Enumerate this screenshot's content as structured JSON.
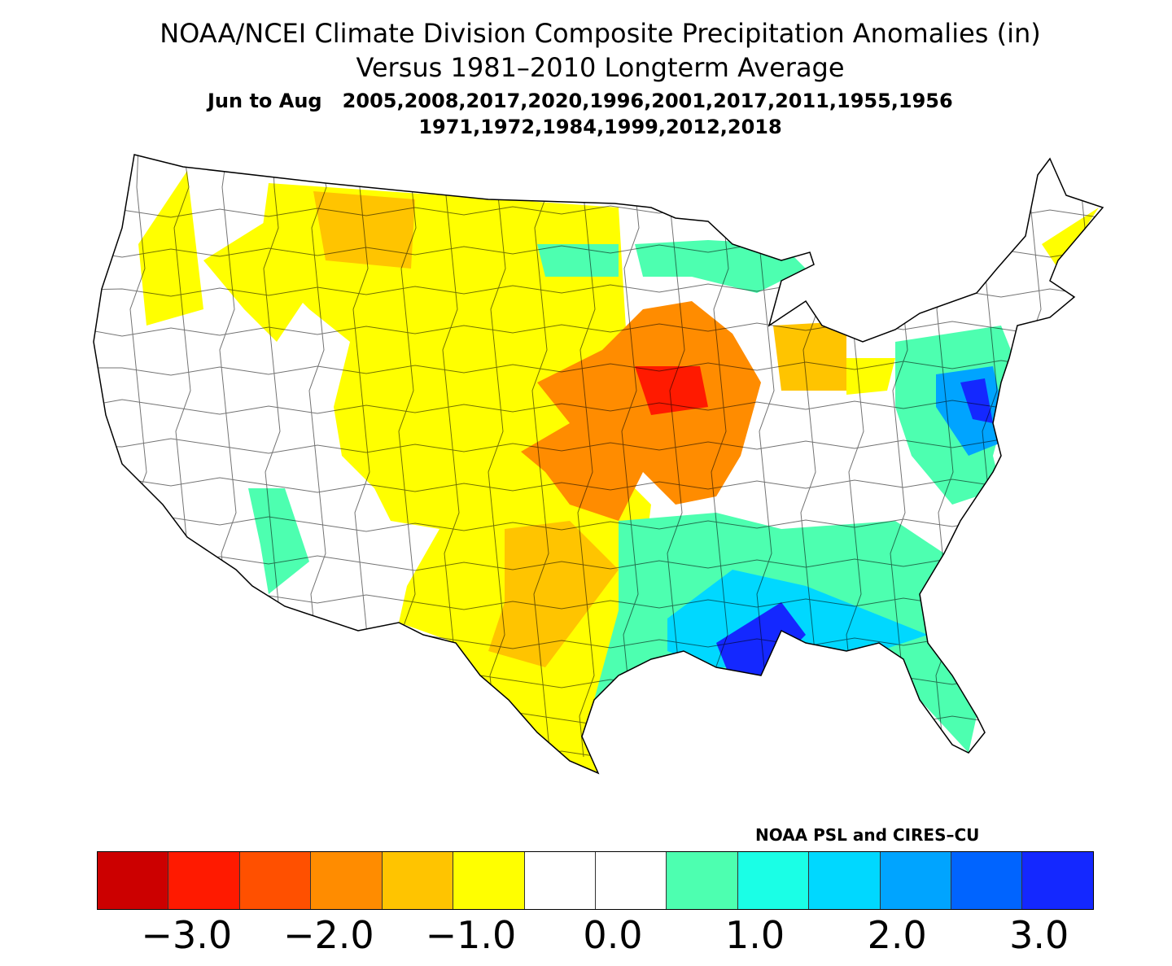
{
  "title": {
    "line1": "NOAA/NCEI Climate Division Composite Precipitation Anomalies (in)",
    "line2": "Versus 1981–2010 Longterm Average",
    "line3": "Jun to Aug   2005,2008,2017,2020,1996,2001,2017,2011,1955,1956",
    "line4": "1971,1972,1984,1999,2012,2018"
  },
  "credit": "NOAA PSL and CIRES–CU",
  "colorbar": {
    "colors": [
      "#cc0000",
      "#ff1a00",
      "#ff5000",
      "#ff8c00",
      "#ffc400",
      "#ffff00",
      "#ffffff",
      "#ffffff",
      "#4dffb0",
      "#1affe6",
      "#00d8ff",
      "#00a4ff",
      "#0064ff",
      "#1428ff"
    ],
    "bounds": [
      -3.5,
      -3.0,
      -2.5,
      -2.0,
      -1.5,
      -1.0,
      -0.5,
      0.0,
      0.5,
      1.0,
      1.5,
      2.0,
      2.5,
      3.0,
      3.5
    ],
    "tick_values": [
      -3,
      -2,
      -1,
      0,
      1,
      2,
      3
    ],
    "tick_labels": [
      "−3.0",
      "−2.0",
      "−1.0",
      "0.0",
      "1.0",
      "2.0",
      "3.0"
    ]
  },
  "regions": [
    {
      "name": "plains-west-texas",
      "anomaly": -0.8
    },
    {
      "name": "central-montana",
      "anomaly": -1.3
    },
    {
      "name": "corn-belt",
      "anomaly": -1.8
    },
    {
      "name": "iowa-core",
      "anomaly": -2.8
    },
    {
      "name": "indiana-ohio",
      "anomaly": -1.3
    },
    {
      "name": "ohio-east",
      "anomaly": -0.8
    },
    {
      "name": "washington-cascades",
      "anomaly": -0.8
    },
    {
      "name": "idaho-montana-west",
      "anomaly": -0.8
    },
    {
      "name": "central-texas-oklahoma",
      "anomaly": -1.3
    },
    {
      "name": "arizona",
      "anomaly": 0.8
    },
    {
      "name": "southeast",
      "anomaly": 0.8
    },
    {
      "name": "gulf-coast",
      "anomaly": 1.8
    },
    {
      "name": "louisiana-mississippi",
      "anomaly": 3.2
    },
    {
      "name": "upper-midwest",
      "anomaly": 0.8
    },
    {
      "name": "mid-atlantic",
      "anomaly": 0.8
    },
    {
      "name": "maryland-virginia",
      "anomaly": 2.3
    },
    {
      "name": "chesapeake",
      "anomaly": 3.2
    },
    {
      "name": "maine-coast",
      "anomaly": -0.8
    },
    {
      "name": "dakotas-east",
      "anomaly": 0.8
    }
  ]
}
